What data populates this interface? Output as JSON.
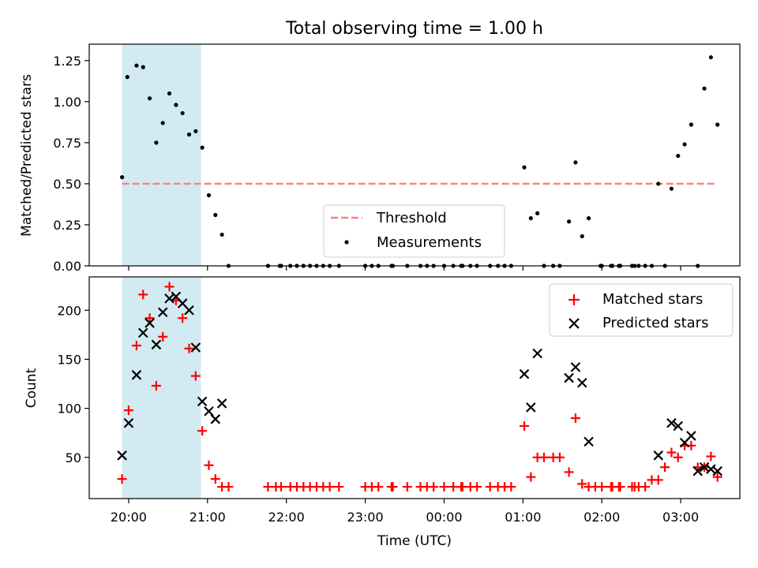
{
  "chart_data": [
    {
      "type": "scatter",
      "panel": "top",
      "title": "Total observing time = 1.00 h",
      "xlabel": "",
      "ylabel": "Matched/Predicted stars",
      "ylim": [
        0,
        1.35
      ],
      "yticks": [
        0.0,
        0.25,
        0.5,
        0.75,
        1.0,
        1.25
      ],
      "ytick_labels": [
        "0.00",
        "0.25",
        "0.50",
        "0.75",
        "1.00",
        "1.25"
      ],
      "highlight_span": [
        "19:55",
        "20:55"
      ],
      "threshold": {
        "name": "Threshold",
        "value": 0.5,
        "x_range": [
          "19:55",
          "03:26"
        ],
        "color": "#ff7f7f"
      },
      "legend": {
        "placement": "lower center",
        "entries": [
          "Threshold",
          "Measurements"
        ]
      },
      "series": [
        {
          "name": "Measurements",
          "color": "#000000",
          "points": [
            [
              "19:55",
              0.54
            ],
            [
              "19:59",
              1.15
            ],
            [
              "20:06",
              1.22
            ],
            [
              "20:11",
              1.21
            ],
            [
              "20:16",
              1.02
            ],
            [
              "20:21",
              0.75
            ],
            [
              "20:26",
              0.87
            ],
            [
              "20:31",
              1.05
            ],
            [
              "20:36",
              0.98
            ],
            [
              "20:41",
              0.93
            ],
            [
              "20:46",
              0.8
            ],
            [
              "20:51",
              0.82
            ],
            [
              "20:56",
              0.72
            ],
            [
              "21:01",
              0.43
            ],
            [
              "21:06",
              0.31
            ],
            [
              "21:11",
              0.19
            ],
            [
              "21:16",
              0.0
            ],
            [
              "21:46",
              0.0
            ],
            [
              "21:55",
              0.0
            ],
            [
              "21:56",
              0.0
            ],
            [
              "22:03",
              0.0
            ],
            [
              "22:08",
              0.0
            ],
            [
              "22:13",
              0.0
            ],
            [
              "22:18",
              0.0
            ],
            [
              "22:23",
              0.0
            ],
            [
              "22:28",
              0.0
            ],
            [
              "22:33",
              0.0
            ],
            [
              "22:40",
              0.0
            ],
            [
              "23:00",
              0.0
            ],
            [
              "23:05",
              0.0
            ],
            [
              "23:10",
              0.0
            ],
            [
              "23:20",
              0.0
            ],
            [
              "23:21",
              0.0
            ],
            [
              "23:32",
              0.0
            ],
            [
              "23:42",
              0.0
            ],
            [
              "23:47",
              0.0
            ],
            [
              "23:52",
              0.0
            ],
            [
              "00:00",
              0.0
            ],
            [
              "00:07",
              0.0
            ],
            [
              "00:13",
              0.0
            ],
            [
              "00:14",
              0.0
            ],
            [
              "00:20",
              0.0
            ],
            [
              "00:25",
              0.0
            ],
            [
              "00:35",
              0.0
            ],
            [
              "00:41",
              0.0
            ],
            [
              "00:46",
              0.0
            ],
            [
              "00:51",
              0.0
            ],
            [
              "01:01",
              0.6
            ],
            [
              "01:06",
              0.29
            ],
            [
              "01:11",
              0.32
            ],
            [
              "01:16",
              0.0
            ],
            [
              "01:23",
              0.0
            ],
            [
              "01:28",
              0.0
            ],
            [
              "01:35",
              0.27
            ],
            [
              "01:40",
              0.63
            ],
            [
              "01:45",
              0.18
            ],
            [
              "01:50",
              0.29
            ],
            [
              "01:59",
              0.0
            ],
            [
              "02:00",
              0.0
            ],
            [
              "02:07",
              0.0
            ],
            [
              "02:08",
              0.0
            ],
            [
              "02:13",
              0.0
            ],
            [
              "02:14",
              0.0
            ],
            [
              "02:23",
              0.0
            ],
            [
              "02:25",
              0.0
            ],
            [
              "02:28",
              0.0
            ],
            [
              "02:33",
              0.0
            ],
            [
              "02:38",
              0.0
            ],
            [
              "02:43",
              0.5
            ],
            [
              "02:48",
              0.0
            ],
            [
              "02:53",
              0.47
            ],
            [
              "02:58",
              0.67
            ],
            [
              "03:03",
              0.74
            ],
            [
              "03:08",
              0.86
            ],
            [
              "03:13",
              0.0
            ],
            [
              "03:18",
              1.08
            ],
            [
              "03:23",
              1.27
            ],
            [
              "03:28",
              0.86
            ]
          ]
        }
      ]
    },
    {
      "type": "scatter",
      "panel": "bottom",
      "title": "",
      "xlabel": "Time (UTC)",
      "ylabel": "Count",
      "ylim": [
        8,
        234
      ],
      "yticks": [
        50,
        100,
        150,
        200
      ],
      "ytick_labels": [
        "50",
        "100",
        "150",
        "200"
      ],
      "xticks": [
        "20:00",
        "21:00",
        "22:00",
        "23:00",
        "00:00",
        "01:00",
        "02:00",
        "03:00"
      ],
      "xtick_labels": [
        "20:00",
        "21:00",
        "22:00",
        "23:00",
        "00:00",
        "01:00",
        "02:00",
        "03:00"
      ],
      "highlight_span": [
        "19:55",
        "20:55"
      ],
      "legend": {
        "placement": "upper right",
        "entries": [
          "Matched stars",
          "Predicted stars"
        ]
      },
      "series": [
        {
          "name": "Matched stars",
          "marker": "plus",
          "color": "#ff0000",
          "points": [
            [
              "19:55",
              28
            ],
            [
              "20:00",
              98
            ],
            [
              "20:06",
              164
            ],
            [
              "20:11",
              216
            ],
            [
              "20:16",
              192
            ],
            [
              "20:21",
              123
            ],
            [
              "20:26",
              173
            ],
            [
              "20:31",
              224
            ],
            [
              "20:36",
              210
            ],
            [
              "20:41",
              192
            ],
            [
              "20:46",
              161
            ],
            [
              "20:51",
              133
            ],
            [
              "20:56",
              77
            ],
            [
              "21:01",
              42
            ],
            [
              "21:06",
              28
            ],
            [
              "21:11",
              20
            ],
            [
              "21:16",
              20
            ],
            [
              "21:46",
              20
            ],
            [
              "21:52",
              20
            ],
            [
              "21:56",
              20
            ],
            [
              "22:03",
              20
            ],
            [
              "22:08",
              20
            ],
            [
              "22:13",
              20
            ],
            [
              "22:18",
              20
            ],
            [
              "22:23",
              20
            ],
            [
              "22:28",
              20
            ],
            [
              "22:33",
              20
            ],
            [
              "22:40",
              20
            ],
            [
              "23:00",
              20
            ],
            [
              "23:05",
              20
            ],
            [
              "23:10",
              20
            ],
            [
              "23:20",
              20
            ],
            [
              "23:21",
              20
            ],
            [
              "23:32",
              20
            ],
            [
              "23:42",
              20
            ],
            [
              "23:47",
              20
            ],
            [
              "23:52",
              20
            ],
            [
              "00:00",
              20
            ],
            [
              "00:07",
              20
            ],
            [
              "00:13",
              20
            ],
            [
              "00:14",
              20
            ],
            [
              "00:20",
              20
            ],
            [
              "00:25",
              20
            ],
            [
              "00:35",
              20
            ],
            [
              "00:41",
              20
            ],
            [
              "00:46",
              20
            ],
            [
              "00:51",
              20
            ],
            [
              "01:01",
              82
            ],
            [
              "01:06",
              30
            ],
            [
              "01:11",
              50
            ],
            [
              "01:16",
              50
            ],
            [
              "01:23",
              50
            ],
            [
              "01:28",
              50
            ],
            [
              "01:35",
              35
            ],
            [
              "01:40",
              90
            ],
            [
              "01:45",
              23
            ],
            [
              "01:50",
              20
            ],
            [
              "01:55",
              20
            ],
            [
              "02:00",
              20
            ],
            [
              "02:07",
              20
            ],
            [
              "02:08",
              20
            ],
            [
              "02:13",
              20
            ],
            [
              "02:14",
              20
            ],
            [
              "02:23",
              20
            ],
            [
              "02:25",
              20
            ],
            [
              "02:28",
              20
            ],
            [
              "02:33",
              20
            ],
            [
              "02:38",
              27
            ],
            [
              "02:43",
              27
            ],
            [
              "02:48",
              40
            ],
            [
              "02:53",
              55
            ],
            [
              "02:58",
              50
            ],
            [
              "03:03",
              62
            ],
            [
              "03:08",
              62
            ],
            [
              "03:13",
              40
            ],
            [
              "03:18",
              40
            ],
            [
              "03:23",
              51
            ],
            [
              "03:28",
              30
            ]
          ]
        },
        {
          "name": "Predicted stars",
          "marker": "x",
          "color": "#000000",
          "points": [
            [
              "19:55",
              52
            ],
            [
              "20:00",
              85
            ],
            [
              "20:06",
              134
            ],
            [
              "20:11",
              177
            ],
            [
              "20:16",
              187
            ],
            [
              "20:21",
              165
            ],
            [
              "20:26",
              198
            ],
            [
              "20:31",
              212
            ],
            [
              "20:36",
              214
            ],
            [
              "20:41",
              207
            ],
            [
              "20:46",
              200
            ],
            [
              "20:51",
              162
            ],
            [
              "20:56",
              107
            ],
            [
              "21:01",
              97
            ],
            [
              "21:06",
              89
            ],
            [
              "21:11",
              105
            ],
            [
              "01:01",
              135
            ],
            [
              "01:06",
              101
            ],
            [
              "01:11",
              156
            ],
            [
              "01:35",
              131
            ],
            [
              "01:40",
              142
            ],
            [
              "01:45",
              126
            ],
            [
              "01:50",
              66
            ],
            [
              "02:43",
              52
            ],
            [
              "02:53",
              85
            ],
            [
              "02:58",
              82
            ],
            [
              "03:03",
              65
            ],
            [
              "03:08",
              72
            ],
            [
              "03:13",
              36
            ],
            [
              "03:18",
              40
            ],
            [
              "03:23",
              38
            ],
            [
              "03:28",
              36
            ]
          ]
        }
      ]
    }
  ]
}
